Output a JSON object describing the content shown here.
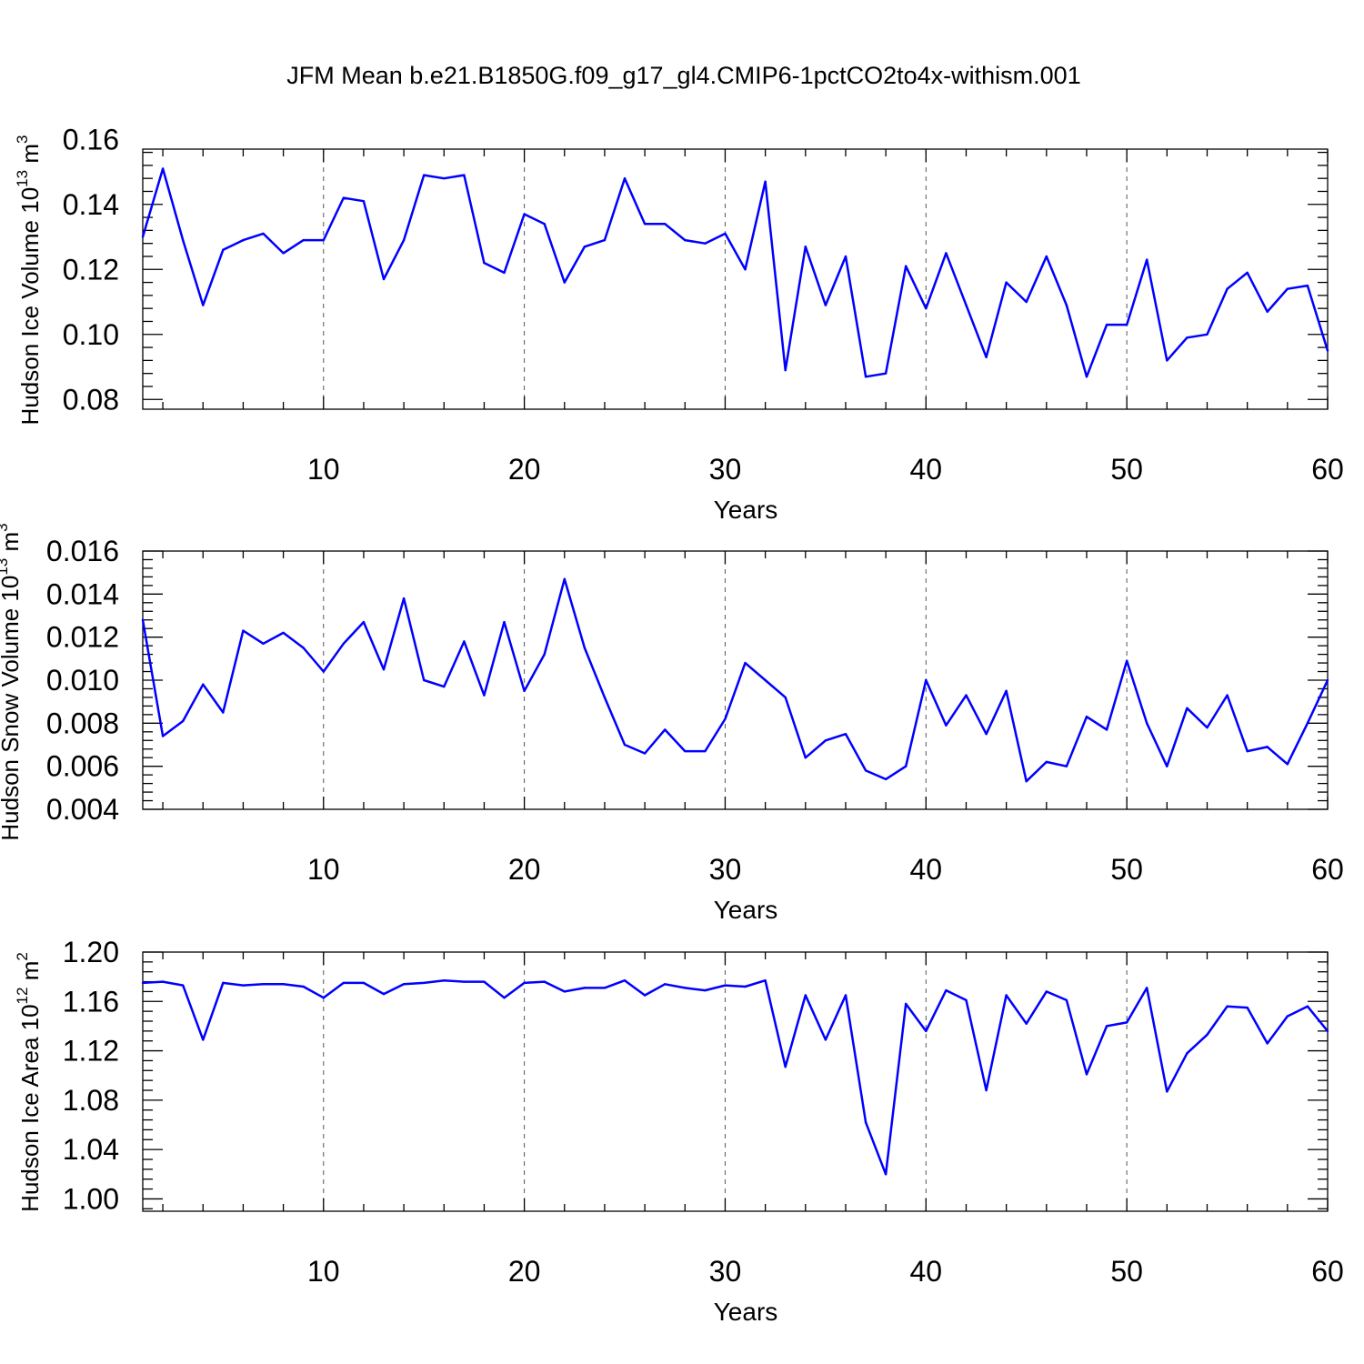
{
  "title": "JFM Mean b.e21.B1850G.f09_g17_gl4.CMIP6-1pctCO2to4x-withism.001",
  "colors": {
    "series": "#0000ff",
    "axis": "#000000",
    "grid": "#555555"
  },
  "chart_data": [
    {
      "type": "line",
      "ylabel_main": "Hudson Ice Volume 10",
      "ylabel_exp": "13",
      "ylabel_unit": " m",
      "ylabel_unit_exp": "3",
      "xlabel": "Years",
      "xlim": [
        1,
        60
      ],
      "ylim": [
        0.077,
        0.157
      ],
      "yticks": [
        0.08,
        0.1,
        0.12,
        0.14,
        0.16
      ],
      "ytick_labels": [
        "0.08",
        "0.10",
        "0.12",
        "0.14",
        "0.16"
      ],
      "xticks": [
        10,
        20,
        30,
        40,
        50,
        60
      ],
      "xtick_labels": [
        "10",
        "20",
        "30",
        "40",
        "50",
        "60"
      ],
      "x": [
        1,
        2,
        3,
        4,
        5,
        6,
        7,
        8,
        9,
        10,
        11,
        12,
        13,
        14,
        15,
        16,
        17,
        18,
        19,
        20,
        21,
        22,
        23,
        24,
        25,
        26,
        27,
        28,
        29,
        30,
        31,
        32,
        33,
        34,
        35,
        36,
        37,
        38,
        39,
        40,
        41,
        42,
        43,
        44,
        45,
        46,
        47,
        48,
        49,
        50,
        51,
        52,
        53,
        54,
        55,
        56,
        57,
        58,
        59,
        60
      ],
      "values": [
        0.13,
        0.151,
        0.129,
        0.109,
        0.126,
        0.129,
        0.131,
        0.125,
        0.129,
        0.129,
        0.142,
        0.141,
        0.117,
        0.129,
        0.149,
        0.148,
        0.149,
        0.122,
        0.119,
        0.137,
        0.134,
        0.116,
        0.127,
        0.129,
        0.148,
        0.134,
        0.134,
        0.129,
        0.128,
        0.131,
        0.12,
        0.147,
        0.089,
        0.127,
        0.109,
        0.124,
        0.087,
        0.088,
        0.121,
        0.108,
        0.125,
        0.109,
        0.093,
        0.116,
        0.11,
        0.124,
        0.109,
        0.087,
        0.103,
        0.103,
        0.123,
        0.092,
        0.099,
        0.1,
        0.114,
        0.119,
        0.107,
        0.114,
        0.115,
        0.095
      ]
    },
    {
      "type": "line",
      "ylabel_main": "Hudson Snow Volume 10",
      "ylabel_exp": "13",
      "ylabel_unit": " m",
      "ylabel_unit_exp": "3",
      "xlabel": "Years",
      "xlim": [
        1,
        60
      ],
      "ylim": [
        0.004,
        0.016
      ],
      "yticks": [
        0.004,
        0.006,
        0.008,
        0.01,
        0.012,
        0.014,
        0.016
      ],
      "ytick_labels": [
        "0.004",
        "0.006",
        "0.008",
        "0.010",
        "0.012",
        "0.014",
        "0.016"
      ],
      "xticks": [
        10,
        20,
        30,
        40,
        50,
        60
      ],
      "xtick_labels": [
        "10",
        "20",
        "30",
        "40",
        "50",
        "60"
      ],
      "x": [
        1,
        2,
        3,
        4,
        5,
        6,
        7,
        8,
        9,
        10,
        11,
        12,
        13,
        14,
        15,
        16,
        17,
        18,
        19,
        20,
        21,
        22,
        23,
        24,
        25,
        26,
        27,
        28,
        29,
        30,
        31,
        32,
        33,
        34,
        35,
        36,
        37,
        38,
        39,
        40,
        41,
        42,
        43,
        44,
        45,
        46,
        47,
        48,
        49,
        50,
        51,
        52,
        53,
        54,
        55,
        56,
        57,
        58,
        59,
        60
      ],
      "values": [
        0.0128,
        0.0074,
        0.0081,
        0.0098,
        0.0085,
        0.0123,
        0.0117,
        0.0122,
        0.0115,
        0.0104,
        0.0117,
        0.0127,
        0.0105,
        0.0138,
        0.01,
        0.0097,
        0.0118,
        0.0093,
        0.0127,
        0.0095,
        0.0112,
        0.0147,
        0.0115,
        0.0092,
        0.007,
        0.0066,
        0.0077,
        0.0067,
        0.0067,
        0.0082,
        0.0108,
        0.01,
        0.0092,
        0.0064,
        0.0072,
        0.0075,
        0.0058,
        0.0054,
        0.006,
        0.01,
        0.0079,
        0.0093,
        0.0075,
        0.0095,
        0.0053,
        0.0062,
        0.006,
        0.0083,
        0.0077,
        0.0109,
        0.008,
        0.006,
        0.0087,
        0.0078,
        0.0093,
        0.0067,
        0.0069,
        0.0061,
        0.008,
        0.01
      ]
    },
    {
      "type": "line",
      "ylabel_main": "Hudson Ice Area 10",
      "ylabel_exp": "12",
      "ylabel_unit": " m",
      "ylabel_unit_exp": "2",
      "xlabel": "Years",
      "xlim": [
        1,
        60
      ],
      "ylim": [
        0.99,
        1.2
      ],
      "yticks": [
        1.0,
        1.04,
        1.08,
        1.12,
        1.16,
        1.2
      ],
      "ytick_labels": [
        "1.00",
        "1.04",
        "1.08",
        "1.12",
        "1.16",
        "1.20"
      ],
      "xticks": [
        10,
        20,
        30,
        40,
        50,
        60
      ],
      "xtick_labels": [
        "10",
        "20",
        "30",
        "40",
        "50",
        "60"
      ],
      "x": [
        1,
        2,
        3,
        4,
        5,
        6,
        7,
        8,
        9,
        10,
        11,
        12,
        13,
        14,
        15,
        16,
        17,
        18,
        19,
        20,
        21,
        22,
        23,
        24,
        25,
        26,
        27,
        28,
        29,
        30,
        31,
        32,
        33,
        34,
        35,
        36,
        37,
        38,
        39,
        40,
        41,
        42,
        43,
        44,
        45,
        46,
        47,
        48,
        49,
        50,
        51,
        52,
        53,
        54,
        55,
        56,
        57,
        58,
        59,
        60
      ],
      "values": [
        1.175,
        1.176,
        1.173,
        1.129,
        1.175,
        1.173,
        1.174,
        1.174,
        1.172,
        1.163,
        1.175,
        1.175,
        1.166,
        1.174,
        1.175,
        1.177,
        1.176,
        1.176,
        1.163,
        1.175,
        1.176,
        1.168,
        1.171,
        1.171,
        1.177,
        1.165,
        1.174,
        1.171,
        1.169,
        1.173,
        1.172,
        1.177,
        1.107,
        1.165,
        1.129,
        1.165,
        1.062,
        1.02,
        1.158,
        1.136,
        1.169,
        1.161,
        1.088,
        1.165,
        1.142,
        1.168,
        1.161,
        1.101,
        1.14,
        1.143,
        1.171,
        1.087,
        1.118,
        1.133,
        1.156,
        1.155,
        1.126,
        1.148,
        1.156,
        1.136
      ]
    }
  ]
}
